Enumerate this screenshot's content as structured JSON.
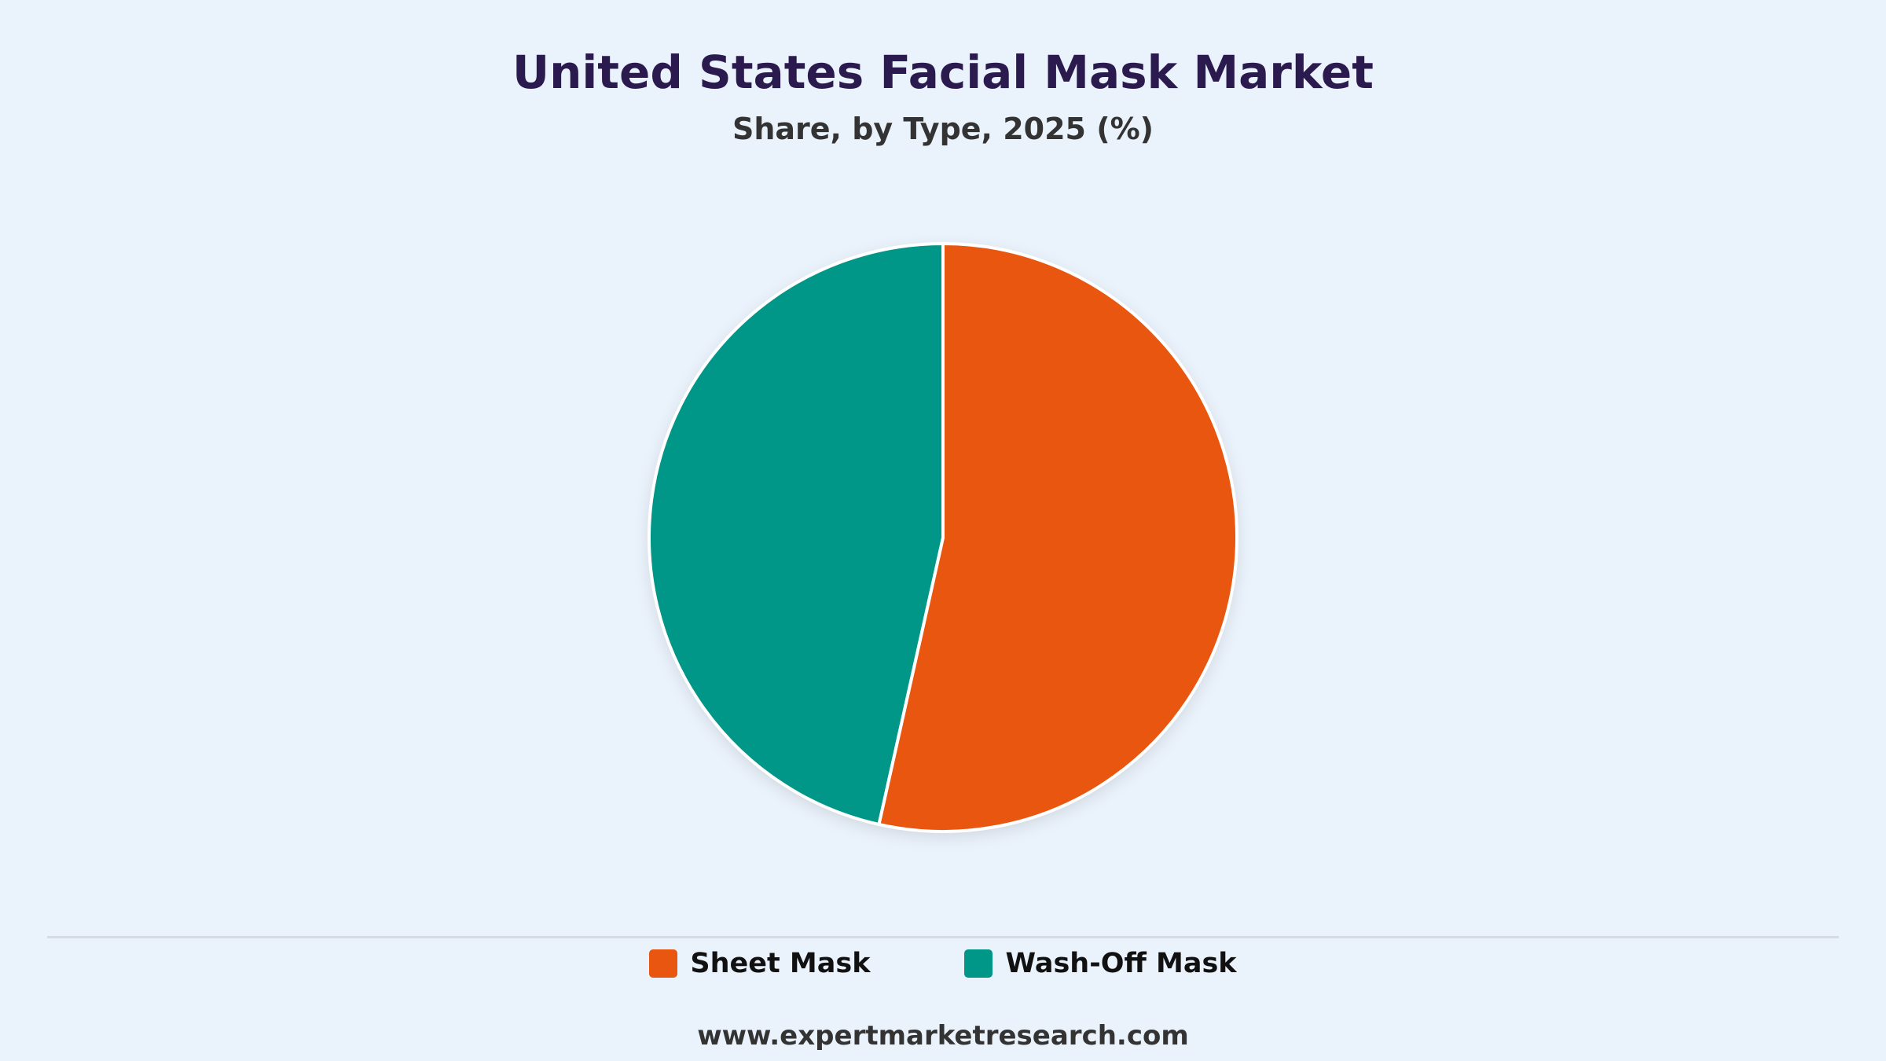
{
  "chart_data": {
    "type": "pie",
    "title": "United States Facial Mask Market",
    "subtitle": "Share, by Type, 2025 (%)",
    "categories": [
      "Sheet Mask",
      "Wash-Off Mask"
    ],
    "values": [
      53.5,
      46.5
    ],
    "colors": [
      "#e8560f",
      "#009688"
    ],
    "start_angle_deg": 0,
    "direction": "clockwise",
    "legend_position": "bottom"
  },
  "footer": {
    "url": "www.expertmarketresearch.com"
  }
}
